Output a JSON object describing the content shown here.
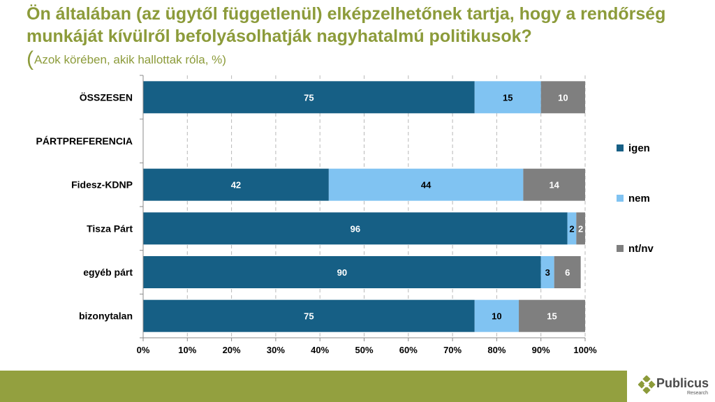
{
  "title": "Ön általában (az ügytől függetlenül) elképzelhetőnek tartja, hogy a rendőrség munkáját kívülről befolyásolhatják nagyhatalmú politikusok?",
  "subtitle_open": "(",
  "subtitle": "Azok körében, akik hallottak róla, %)",
  "colors": {
    "title": "#8c9b3a",
    "footer": "#93a03f",
    "igen": "#165f85",
    "nem": "#80c3f2",
    "ntnv": "#7f7f7f"
  },
  "logo": {
    "name": "Publicus",
    "sub": "Research"
  },
  "chart_data": {
    "type": "bar",
    "orientation": "horizontal",
    "stacked": true,
    "categories": [
      "ÖSSZESEN",
      "PÁRTPREFERENCIA",
      "Fidesz-KDNP",
      "Tisza Párt",
      "egyéb párt",
      "bizonytalan"
    ],
    "series": [
      {
        "name": "igen",
        "color": "#165f85",
        "values": [
          75,
          null,
          42,
          96,
          90,
          75
        ]
      },
      {
        "name": "nem",
        "color": "#80c3f2",
        "values": [
          15,
          null,
          44,
          2,
          3,
          10
        ]
      },
      {
        "name": "nt/nv",
        "color": "#7f7f7f",
        "values": [
          10,
          null,
          14,
          2,
          6,
          15
        ]
      }
    ],
    "xlim": [
      0,
      100
    ],
    "xticks": [
      "0%",
      "10%",
      "20%",
      "30%",
      "40%",
      "50%",
      "60%",
      "70%",
      "80%",
      "90%",
      "100%"
    ],
    "grid": "vertical-dashed",
    "legend": "right"
  }
}
